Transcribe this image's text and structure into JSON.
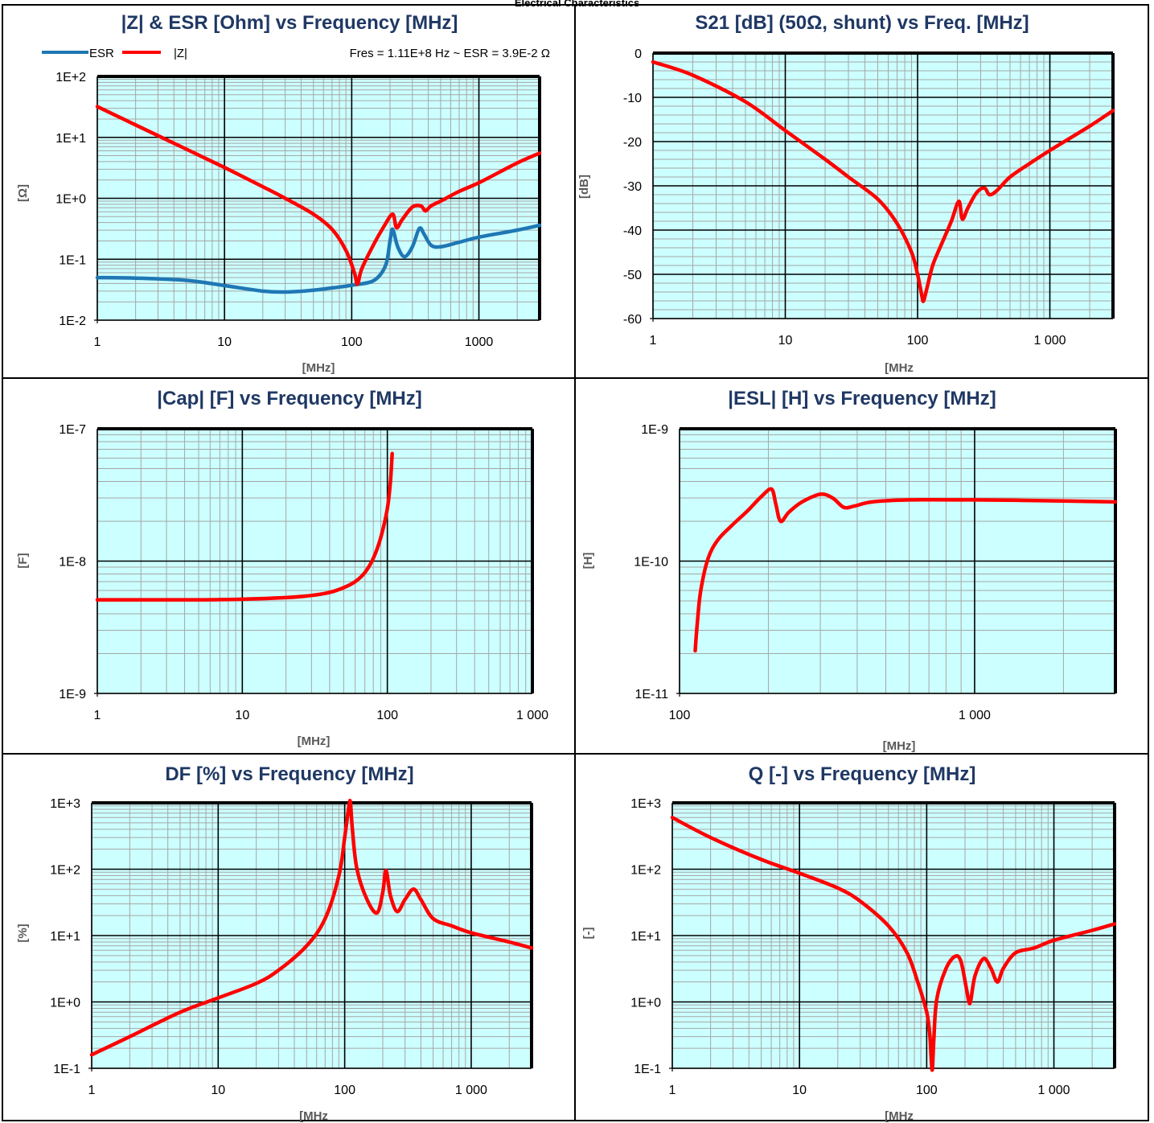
{
  "page": {
    "title": "Electrical Characteristics"
  },
  "chart_data": [
    {
      "id": "z-esr",
      "type": "line",
      "title": "|Z| & ESR [Ohm] vs Frequency [MHz]",
      "xlabel": "[MHz]",
      "ylabel": "[Ω]",
      "xscale": "log",
      "yscale": "log",
      "xlim": [
        1,
        3000
      ],
      "ylim": [
        0.01,
        100
      ],
      "xticks": [
        1,
        10,
        100,
        1000
      ],
      "xtick_labels": [
        "1",
        "10",
        "100",
        "1000"
      ],
      "yticks": [
        0.01,
        0.1,
        1,
        10,
        100
      ],
      "ytick_labels": [
        "1E-2",
        "1E-1",
        "1E+0",
        "1E+1",
        "1E+2"
      ],
      "grid": true,
      "legend": "top-left",
      "annotation": "Fres = 1.11E+8 Hz ~ ESR = 3.9E-2 Ω",
      "series": [
        {
          "name": "ESR",
          "color": "#1f77b4",
          "x": [
            1,
            2,
            5,
            10,
            20,
            30,
            50,
            80,
            105,
            150,
            185,
            200,
            210,
            230,
            260,
            300,
            340,
            370,
            420,
            500,
            700,
            1000,
            2000,
            3000
          ],
          "y": [
            0.05,
            0.049,
            0.045,
            0.037,
            0.03,
            0.029,
            0.031,
            0.035,
            0.038,
            0.045,
            0.08,
            0.2,
            0.31,
            0.16,
            0.11,
            0.16,
            0.32,
            0.26,
            0.17,
            0.16,
            0.19,
            0.23,
            0.3,
            0.36
          ]
        },
        {
          "name": "|Z|",
          "color": "#ff0000",
          "x": [
            1,
            2,
            5,
            10,
            20,
            30,
            50,
            70,
            90,
            105,
            111,
            120,
            150,
            180,
            210,
            225,
            250,
            300,
            350,
            380,
            420,
            500,
            700,
            1000,
            2000,
            3000
          ],
          "y": [
            32,
            16,
            6.4,
            3.2,
            1.55,
            1.0,
            0.55,
            0.31,
            0.14,
            0.06,
            0.039,
            0.07,
            0.18,
            0.35,
            0.55,
            0.33,
            0.45,
            0.72,
            0.75,
            0.62,
            0.75,
            0.9,
            1.3,
            1.8,
            3.8,
            5.5
          ]
        }
      ]
    },
    {
      "id": "s21",
      "type": "line",
      "title": "S21 [dB] (50Ω, shunt) vs Freq. [MHz]",
      "xlabel": "[MHz",
      "ylabel": "[dB]",
      "xscale": "log",
      "yscale": "linear",
      "xlim": [
        1,
        3000
      ],
      "ylim": [
        -60,
        0
      ],
      "xticks": [
        1,
        10,
        100,
        1000
      ],
      "xtick_labels": [
        "1",
        "10",
        "100",
        "1 000"
      ],
      "yticks": [
        0,
        -10,
        -20,
        -30,
        -40,
        -50,
        -60
      ],
      "ytick_labels": [
        "0",
        "-10",
        "-20",
        "-30",
        "-40",
        "-50",
        "-60"
      ],
      "grid": true,
      "series": [
        {
          "color": "#ff0000",
          "x": [
            1,
            2,
            5,
            10,
            20,
            30,
            50,
            70,
            90,
            100,
            108,
            111,
            118,
            130,
            150,
            180,
            205,
            218,
            240,
            280,
            320,
            350,
            400,
            500,
            700,
            1000,
            2000,
            3000
          ],
          "y": [
            -2,
            -5,
            -11,
            -17.5,
            -24,
            -28,
            -33,
            -38.5,
            -45,
            -50,
            -55,
            -56,
            -53,
            -48,
            -43.5,
            -38,
            -33.5,
            -37.5,
            -35,
            -31.5,
            -30.5,
            -32,
            -31,
            -28,
            -25,
            -22,
            -16.5,
            -13
          ]
        }
      ]
    },
    {
      "id": "cap",
      "type": "line",
      "title": "|Cap| [F] vs Frequency [MHz]",
      "xlabel": "[MHz]",
      "ylabel": "[F]",
      "xscale": "log",
      "yscale": "log",
      "xlim": [
        1,
        1000
      ],
      "ylim": [
        1e-09,
        1e-07
      ],
      "xticks": [
        1,
        10,
        100,
        1000
      ],
      "xtick_labels": [
        "1",
        "10",
        "100",
        "1 000"
      ],
      "yticks": [
        1e-09,
        1e-08,
        1e-07
      ],
      "ytick_labels": [
        "1E-9",
        "1E-8",
        "1E-7"
      ],
      "grid": true,
      "series": [
        {
          "color": "#ff0000",
          "x": [
            1,
            5,
            10,
            20,
            30,
            40,
            50,
            60,
            70,
            80,
            90,
            100,
            105,
            108
          ],
          "y": [
            5.1e-09,
            5.1e-09,
            5.15e-09,
            5.3e-09,
            5.5e-09,
            5.8e-09,
            6.3e-09,
            7e-09,
            8.2e-09,
            1.05e-08,
            1.5e-08,
            2.5e-08,
            4e-08,
            6.5e-08
          ]
        }
      ]
    },
    {
      "id": "esl",
      "type": "line",
      "title": "|ESL| [H] vs Frequency [MHz]",
      "xlabel": "[MHz]",
      "ylabel": "[H]",
      "xscale": "log",
      "yscale": "log",
      "xlim": [
        100,
        3000
      ],
      "ylim": [
        1e-11,
        1e-09
      ],
      "xticks": [
        100,
        1000
      ],
      "xtick_labels": [
        "100",
        "1 000"
      ],
      "yticks": [
        1e-11,
        1e-10,
        1e-09
      ],
      "ytick_labels": [
        "1E-11",
        "1E-10",
        "1E-9"
      ],
      "grid": true,
      "series": [
        {
          "color": "#ff0000",
          "x": [
            113,
            115,
            118,
            125,
            135,
            150,
            170,
            190,
            205,
            212,
            220,
            235,
            260,
            300,
            330,
            360,
            390,
            450,
            600,
            1000,
            2000,
            3000
          ],
          "y": [
            2.1e-11,
            3.5e-11,
            6e-11,
            1.05e-10,
            1.45e-10,
            1.85e-10,
            2.4e-10,
            3.1e-10,
            3.5e-10,
            2.7e-10,
            2e-10,
            2.35e-10,
            2.8e-10,
            3.2e-10,
            3e-10,
            2.55e-10,
            2.6e-10,
            2.8e-10,
            2.9e-10,
            2.9e-10,
            2.85e-10,
            2.8e-10
          ]
        }
      ]
    },
    {
      "id": "df",
      "type": "line",
      "title": "DF [%] vs Frequency [MHz]",
      "xlabel": "[MHz",
      "ylabel": "[%]",
      "xscale": "log",
      "yscale": "log",
      "xlim": [
        1,
        3000
      ],
      "ylim": [
        0.1,
        1000
      ],
      "xticks": [
        1,
        10,
        100,
        1000
      ],
      "xtick_labels": [
        "1",
        "10",
        "100",
        "1 000"
      ],
      "yticks": [
        0.1,
        1,
        10,
        100,
        1000
      ],
      "ytick_labels": [
        "1E-1",
        "1E+0",
        "1E+1",
        "1E+2",
        "1E+3"
      ],
      "grid": true,
      "series": [
        {
          "color": "#ff0000",
          "x": [
            1,
            2,
            5,
            10,
            20,
            30,
            50,
            70,
            90,
            100,
            108,
            111,
            115,
            125,
            150,
            180,
            200,
            212,
            230,
            260,
            300,
            350,
            400,
            500,
            700,
            1000,
            2000,
            3000
          ],
          "y": [
            0.16,
            0.3,
            0.7,
            1.15,
            1.9,
            3,
            7,
            18,
            80,
            300,
            900,
            1000,
            400,
            100,
            35,
            22,
            45,
            95,
            40,
            23,
            35,
            50,
            35,
            18,
            14,
            11,
            8,
            6.5
          ]
        }
      ]
    },
    {
      "id": "q",
      "type": "line",
      "title": "Q [-] vs Frequency [MHz]",
      "xlabel": "[MHz",
      "ylabel": "[-]",
      "xscale": "log",
      "yscale": "log",
      "xlim": [
        1,
        3000
      ],
      "ylim": [
        0.1,
        1000
      ],
      "xticks": [
        1,
        10,
        100,
        1000
      ],
      "xtick_labels": [
        "1",
        "10",
        "100",
        "1 000"
      ],
      "yticks": [
        0.1,
        1,
        10,
        100,
        1000
      ],
      "ytick_labels": [
        "1E-1",
        "1E+0",
        "1E+1",
        "1E+2",
        "1E+3"
      ],
      "grid": true,
      "series": [
        {
          "color": "#ff0000",
          "x": [
            1,
            2,
            5,
            10,
            20,
            30,
            50,
            70,
            85,
            100,
            106,
            109,
            111,
            114,
            120,
            140,
            165,
            185,
            205,
            215,
            222,
            240,
            280,
            320,
            360,
            400,
            500,
            700,
            1000,
            2000,
            3000
          ],
          "y": [
            600,
            300,
            140,
            87,
            52,
            33,
            14,
            5.5,
            2,
            0.7,
            0.3,
            0.12,
            0.1,
            0.3,
            1.1,
            3,
            4.8,
            4.2,
            1.6,
            1.0,
            1.05,
            2.5,
            4.5,
            3.2,
            2.0,
            3.2,
            5.5,
            6.5,
            8.5,
            12,
            15
          ]
        }
      ]
    }
  ]
}
